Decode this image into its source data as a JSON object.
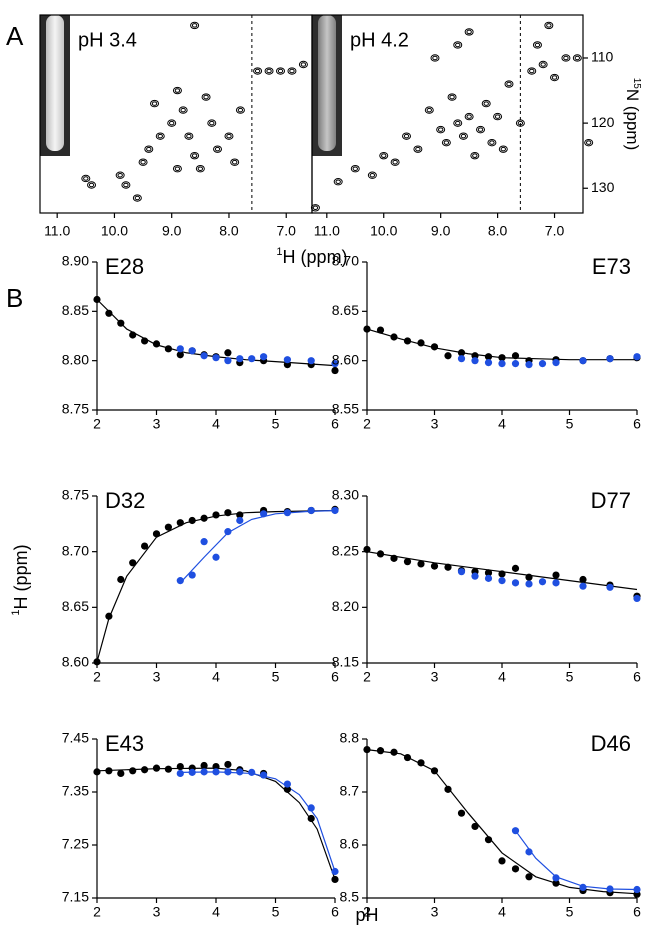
{
  "figure": {
    "panel_labels": [
      "A",
      "B"
    ],
    "ylabel": {
      "sup": "1",
      "text": "H (ppm)"
    },
    "xlabel": "pH"
  },
  "chart_data": [
    {
      "type": "spectrum",
      "title": "pH 3.4",
      "xlim": [
        11.3,
        6.55
      ],
      "ylim": [
        133.8,
        103.4
      ],
      "xticks": [
        {
          "value": 11,
          "label": "11.0"
        },
        {
          "value": 10,
          "label": "10.0"
        },
        {
          "value": 9,
          "label": "9.0"
        },
        {
          "value": 8,
          "label": "8.0"
        },
        {
          "value": 7,
          "label": "7.0"
        }
      ],
      "reference_x": 7.6,
      "color": "#000000",
      "x": [
        10.5,
        10.4,
        9.9,
        9.8,
        9.6,
        9.5,
        9.4,
        9.2,
        9.0,
        8.9,
        8.8,
        8.7,
        8.6,
        8.5,
        8.4,
        8.3,
        8.2,
        8.0,
        7.9,
        7.8,
        8.6,
        7.5,
        7.3,
        7.1,
        6.9,
        6.7,
        8.9,
        9.3
      ],
      "values": [
        128.5,
        129.5,
        128,
        129.5,
        131.5,
        126,
        124,
        122,
        120,
        115,
        118,
        122,
        125,
        127,
        116,
        120,
        124,
        122,
        126,
        118,
        105,
        112,
        112,
        112,
        112,
        111,
        127,
        117
      ]
    },
    {
      "type": "spectrum",
      "title": "pH 4.2",
      "xlim": [
        11.26,
        6.5
      ],
      "ylim": [
        133.8,
        103.4
      ],
      "xticks": [
        {
          "value": 11,
          "label": "11.0"
        },
        {
          "value": 10,
          "label": "10.0"
        },
        {
          "value": 9,
          "label": "9.0"
        },
        {
          "value": 8,
          "label": "8.0"
        },
        {
          "value": 7,
          "label": "7.0"
        }
      ],
      "yticks": [
        110,
        120,
        130
      ],
      "ylabel": {
        "sup": "15",
        "text": "N (ppm)"
      },
      "reference_x": 7.6,
      "color": "#000000",
      "x": [
        11.2,
        10.8,
        10.5,
        10.2,
        10.0,
        9.8,
        9.6,
        9.4,
        9.2,
        9.0,
        8.9,
        8.8,
        8.7,
        8.6,
        8.5,
        8.4,
        8.3,
        8.2,
        8.1,
        8.0,
        7.9,
        7.8,
        7.6,
        7.4,
        7.2,
        7.0,
        6.8,
        6.6,
        6.4,
        8.5,
        8.7,
        9.1,
        7.3,
        7.1
      ],
      "values": [
        133,
        129,
        127,
        128,
        125,
        126,
        122,
        124,
        118,
        121,
        123,
        116,
        120,
        122,
        119,
        125,
        121,
        117,
        123,
        119,
        124,
        114,
        120,
        112,
        111,
        113,
        110,
        110,
        123,
        106,
        108,
        110,
        108,
        105
      ]
    },
    {
      "type": "scatter",
      "title": "E28",
      "xlim": [
        2,
        6
      ],
      "xticks": [
        2,
        3,
        4,
        5,
        6
      ],
      "ylim": [
        8.75,
        8.9
      ],
      "yticks": [
        8.75,
        {
          "value": 8.8,
          "label": "8.80"
        },
        8.85,
        {
          "value": 8.9,
          "label": "8.90"
        }
      ],
      "series": [
        {
          "color": "#000000",
          "x": [
            2,
            2.2,
            2.4,
            2.6,
            2.8,
            3,
            3.2,
            3.4,
            3.6,
            3.8,
            4,
            4.2,
            4.4,
            4.8,
            5.2,
            5.6,
            6
          ],
          "values": [
            8.862,
            8.848,
            8.838,
            8.826,
            8.82,
            8.817,
            8.812,
            8.806,
            8.81,
            8.806,
            8.804,
            8.808,
            8.798,
            8.8,
            8.796,
            8.796,
            8.79
          ],
          "fit_x": [
            2,
            2.5,
            3,
            3.5,
            4,
            4.5,
            5,
            5.5,
            6
          ],
          "fit_values": [
            8.862,
            8.832,
            8.816,
            8.808,
            8.804,
            8.801,
            8.799,
            8.797,
            8.795
          ]
        },
        {
          "color": "#1f4fe0",
          "x": [
            3.4,
            3.6,
            3.8,
            4,
            4.2,
            4.4,
            4.6,
            4.8,
            5.2,
            5.6,
            6
          ],
          "values": [
            8.812,
            8.81,
            8.805,
            8.803,
            8.8,
            8.802,
            8.802,
            8.804,
            8.801,
            8.8,
            8.797
          ]
        }
      ]
    },
    {
      "type": "scatter",
      "title": "E73",
      "xlim": [
        2,
        6
      ],
      "xticks": [
        2,
        3,
        4,
        5,
        6
      ],
      "ylim": [
        8.55,
        8.7
      ],
      "yticks": [
        8.55,
        {
          "value": 8.6,
          "label": "8.60"
        },
        8.65,
        {
          "value": 8.7,
          "label": "8.70"
        }
      ],
      "series": [
        {
          "color": "#000000",
          "x": [
            2,
            2.2,
            2.4,
            2.6,
            2.8,
            3,
            3.2,
            3.4,
            3.6,
            3.8,
            4,
            4.2,
            4.4,
            4.8,
            5.2,
            5.6,
            6
          ],
          "values": [
            8.632,
            8.631,
            8.624,
            8.62,
            8.618,
            8.614,
            8.605,
            8.608,
            8.605,
            8.604,
            8.603,
            8.605,
            8.6,
            8.601,
            8.6,
            8.602,
            8.603
          ],
          "fit_x": [
            2,
            2.5,
            3,
            3.5,
            4,
            4.5,
            5,
            5.5,
            6
          ],
          "fit_values": [
            8.632,
            8.622,
            8.613,
            8.607,
            8.603,
            8.602,
            8.601,
            8.601,
            8.601
          ]
        },
        {
          "color": "#1f4fe0",
          "x": [
            3.4,
            3.6,
            3.8,
            4,
            4.2,
            4.4,
            4.6,
            4.8,
            5.2,
            5.6,
            6
          ],
          "values": [
            8.602,
            8.6,
            8.598,
            8.597,
            8.597,
            8.596,
            8.597,
            8.598,
            8.6,
            8.602,
            8.604
          ]
        }
      ]
    },
    {
      "type": "scatter",
      "title": "D32",
      "xlim": [
        2,
        6
      ],
      "xticks": [
        2,
        3,
        4,
        5,
        6
      ],
      "ylim": [
        8.6,
        8.75
      ],
      "yticks": [
        {
          "value": 8.6,
          "label": "8.60"
        },
        8.65,
        {
          "value": 8.7,
          "label": "8.70"
        },
        8.75
      ],
      "series": [
        {
          "color": "#000000",
          "x": [
            2,
            2.2,
            2.4,
            2.6,
            2.8,
            3,
            3.2,
            3.4,
            3.6,
            3.8,
            4,
            4.2,
            4.4,
            4.8,
            5.2,
            5.6,
            6
          ],
          "values": [
            8.601,
            8.642,
            8.675,
            8.69,
            8.705,
            8.716,
            8.722,
            8.726,
            8.728,
            8.73,
            8.733,
            8.735,
            8.733,
            8.737,
            8.736,
            8.737,
            8.738
          ],
          "fit_x": [
            2,
            2.2,
            2.5,
            3,
            3.5,
            4,
            4.5,
            5,
            6
          ],
          "fit_values": [
            8.601,
            8.64,
            8.678,
            8.713,
            8.726,
            8.732,
            8.735,
            8.736,
            8.737
          ]
        },
        {
          "color": "#1f4fe0",
          "x": [
            3.4,
            3.6,
            3.8,
            4,
            4.2,
            4.4,
            4.8,
            5.2,
            5.6,
            6
          ],
          "values": [
            8.674,
            8.679,
            8.709,
            8.695,
            8.718,
            8.728,
            8.734,
            8.735,
            8.737,
            8.737
          ],
          "fit_x": [
            3.4,
            3.8,
            4.2,
            4.6,
            5,
            5.5,
            6
          ],
          "fit_values": [
            8.672,
            8.695,
            8.717,
            8.729,
            8.734,
            8.736,
            8.737
          ]
        }
      ]
    },
    {
      "type": "scatter",
      "title": "D77",
      "xlim": [
        2,
        6
      ],
      "xticks": [
        2,
        3,
        4,
        5,
        6
      ],
      "ylim": [
        8.15,
        8.3
      ],
      "yticks": [
        8.15,
        {
          "value": 8.2,
          "label": "8.20"
        },
        8.25,
        {
          "value": 8.3,
          "label": "8.30"
        }
      ],
      "series": [
        {
          "color": "#000000",
          "x": [
            2,
            2.2,
            2.4,
            2.6,
            2.8,
            3,
            3.2,
            3.4,
            3.6,
            3.8,
            4,
            4.2,
            4.4,
            4.8,
            5.2,
            5.6,
            6
          ],
          "values": [
            8.252,
            8.248,
            8.244,
            8.241,
            8.239,
            8.237,
            8.236,
            8.233,
            8.232,
            8.231,
            8.23,
            8.235,
            8.227,
            8.229,
            8.225,
            8.22,
            8.21
          ],
          "fit_x": [
            2,
            3,
            4,
            5,
            6
          ],
          "fit_values": [
            8.25,
            8.24,
            8.232,
            8.224,
            8.216
          ]
        },
        {
          "color": "#1f4fe0",
          "x": [
            3.4,
            3.6,
            3.8,
            4,
            4.2,
            4.4,
            4.6,
            4.8,
            5.2,
            5.6,
            6
          ],
          "values": [
            8.232,
            8.228,
            8.226,
            8.224,
            8.222,
            8.221,
            8.223,
            8.222,
            8.219,
            8.218,
            8.208
          ]
        }
      ]
    },
    {
      "type": "scatter",
      "title": "E43",
      "xlim": [
        2,
        6
      ],
      "xticks": [
        2,
        3,
        4,
        5,
        6
      ],
      "ylim": [
        7.15,
        7.45
      ],
      "yticks": [
        7.15,
        7.25,
        7.35,
        7.45
      ],
      "series": [
        {
          "color": "#000000",
          "x": [
            2,
            2.2,
            2.4,
            2.6,
            2.8,
            3,
            3.2,
            3.4,
            3.6,
            3.8,
            4,
            4.2,
            4.4,
            4.8,
            5.2,
            5.6,
            6
          ],
          "values": [
            7.388,
            7.39,
            7.385,
            7.39,
            7.392,
            7.395,
            7.393,
            7.398,
            7.395,
            7.4,
            7.398,
            7.402,
            7.392,
            7.385,
            7.355,
            7.3,
            7.185
          ],
          "fit_x": [
            2,
            3,
            4,
            4.5,
            5,
            5.4,
            5.7,
            6
          ],
          "fit_values": [
            7.39,
            7.394,
            7.395,
            7.39,
            7.37,
            7.33,
            7.28,
            7.185
          ]
        },
        {
          "color": "#1f4fe0",
          "x": [
            3.4,
            3.6,
            3.8,
            4,
            4.2,
            4.4,
            4.6,
            4.8,
            5.2,
            5.6,
            6
          ],
          "values": [
            7.385,
            7.387,
            7.388,
            7.388,
            7.388,
            7.388,
            7.387,
            7.382,
            7.365,
            7.32,
            7.2
          ],
          "fit_x": [
            3.4,
            4,
            4.6,
            5,
            5.4,
            5.7,
            6
          ],
          "fit_values": [
            7.387,
            7.388,
            7.385,
            7.375,
            7.345,
            7.3,
            7.2
          ]
        }
      ]
    },
    {
      "type": "scatter",
      "title": "D46",
      "xlim": [
        2,
        6
      ],
      "xticks": [
        2,
        3,
        4,
        5,
        6
      ],
      "ylim": [
        8.5,
        8.8
      ],
      "yticks": [
        8.5,
        8.6,
        8.7,
        8.8
      ],
      "series": [
        {
          "color": "#000000",
          "x": [
            2,
            2.2,
            2.4,
            2.6,
            2.8,
            3,
            3.2,
            3.4,
            3.6,
            3.8,
            4,
            4.2,
            4.4,
            4.8,
            5.2,
            5.6,
            6
          ],
          "values": [
            8.78,
            8.778,
            8.775,
            8.765,
            8.755,
            8.74,
            8.705,
            8.66,
            8.635,
            8.61,
            8.57,
            8.555,
            8.54,
            8.528,
            8.514,
            8.51,
            8.507
          ],
          "fit_x": [
            2,
            2.5,
            3,
            3.5,
            4,
            4.5,
            5,
            5.5,
            6
          ],
          "fit_values": [
            8.78,
            8.772,
            8.74,
            8.66,
            8.585,
            8.54,
            8.52,
            8.512,
            8.508
          ]
        },
        {
          "color": "#1f4fe0",
          "x": [
            4.2,
            4.4,
            4.8,
            5.2,
            5.6,
            6
          ],
          "values": [
            8.627,
            8.587,
            8.538,
            8.52,
            8.517,
            8.516
          ],
          "fit_x": [
            4.2,
            4.5,
            4.8,
            5.2,
            5.6,
            6
          ],
          "fit_values": [
            8.627,
            8.575,
            8.54,
            8.522,
            8.517,
            8.516
          ]
        }
      ]
    }
  ]
}
